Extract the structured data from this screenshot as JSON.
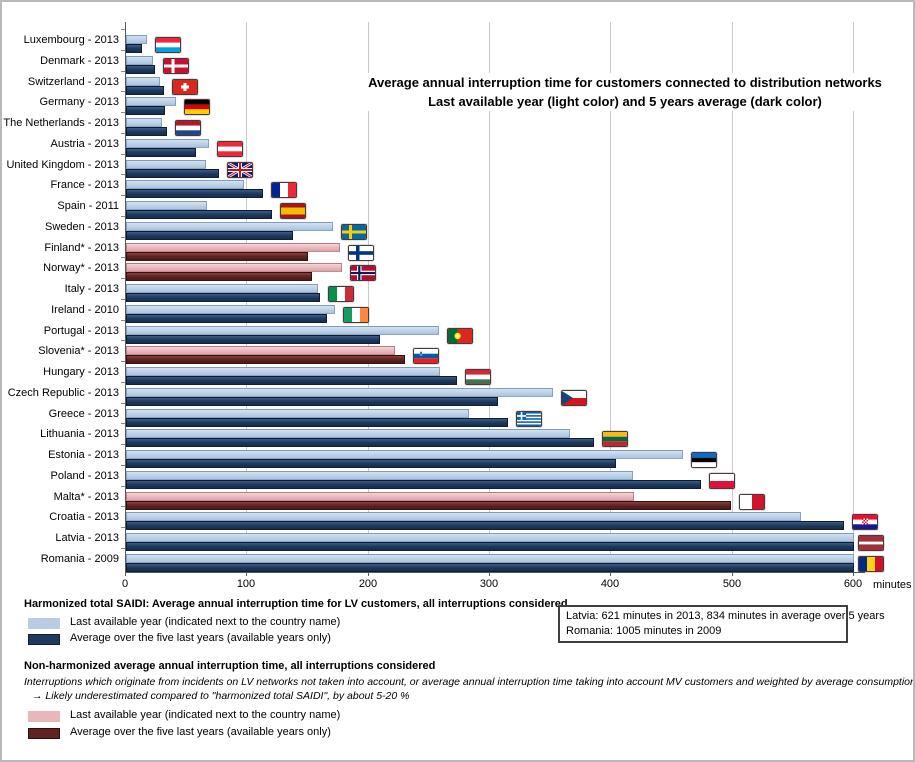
{
  "title": {
    "line1": "Average annual interruption time for customers connected to distribution networks",
    "line2": "Last available year (light color) and 5 years average (dark color)"
  },
  "axis": {
    "unit_label": "minutes"
  },
  "chart_data": {
    "type": "bar",
    "orientation": "horizontal",
    "unit": "minutes",
    "xlim": [
      0,
      600
    ],
    "x_ticks": [
      0,
      100,
      200,
      300,
      400,
      500,
      600
    ],
    "grid": true,
    "series_names": [
      "Last available year",
      "Average over the five last years"
    ],
    "countries": [
      {
        "label": "Luxembourg - 2013",
        "flag": "luxembourg",
        "group": "harmonized",
        "last_year": 17,
        "five_year_avg": 13
      },
      {
        "label": "Denmark - 2013",
        "flag": "denmark",
        "group": "harmonized",
        "last_year": 22,
        "five_year_avg": 24
      },
      {
        "label": "Switzerland - 2013",
        "flag": "switzerland",
        "group": "harmonized",
        "last_year": 28,
        "five_year_avg": 31
      },
      {
        "label": "Germany - 2013",
        "flag": "germany",
        "group": "harmonized",
        "last_year": 41,
        "five_year_avg": 32
      },
      {
        "label": "The Netherlands - 2013",
        "flag": "netherlands",
        "group": "harmonized",
        "last_year": 30,
        "five_year_avg": 34
      },
      {
        "label": "Austria - 2013",
        "flag": "austria",
        "group": "harmonized",
        "last_year": 68,
        "five_year_avg": 58
      },
      {
        "label": "United Kingdom - 2013",
        "flag": "uk",
        "group": "harmonized",
        "last_year": 66,
        "five_year_avg": 77
      },
      {
        "label": "France - 2013",
        "flag": "france",
        "group": "harmonized",
        "last_year": 97,
        "five_year_avg": 113
      },
      {
        "label": "Spain - 2011",
        "flag": "spain",
        "group": "harmonized",
        "last_year": 67,
        "five_year_avg": 120
      },
      {
        "label": "Sweden - 2013",
        "flag": "sweden",
        "group": "harmonized",
        "last_year": 171,
        "five_year_avg": 138
      },
      {
        "label": "Finland* - 2013",
        "flag": "finland",
        "group": "non_harmonized",
        "last_year": 176,
        "five_year_avg": 150
      },
      {
        "label": "Norway* - 2013",
        "flag": "norway",
        "group": "non_harmonized",
        "last_year": 178,
        "five_year_avg": 153
      },
      {
        "label": "Italy - 2013",
        "flag": "italy",
        "group": "harmonized",
        "last_year": 158,
        "five_year_avg": 160
      },
      {
        "label": "Ireland - 2010",
        "flag": "ireland",
        "group": "harmonized",
        "last_year": 172,
        "five_year_avg": 166
      },
      {
        "label": "Portugal - 2013",
        "flag": "portugal",
        "group": "harmonized",
        "last_year": 258,
        "five_year_avg": 209
      },
      {
        "label": "Slovenia* - 2013",
        "flag": "slovenia",
        "group": "non_harmonized",
        "last_year": 222,
        "five_year_avg": 230
      },
      {
        "label": "Hungary - 2013",
        "flag": "hungary",
        "group": "harmonized",
        "last_year": 259,
        "five_year_avg": 273
      },
      {
        "label": "Czech Republic - 2013",
        "flag": "czech",
        "group": "harmonized",
        "last_year": 352,
        "five_year_avg": 307
      },
      {
        "label": "Greece - 2013",
        "flag": "greece",
        "group": "harmonized",
        "last_year": 283,
        "five_year_avg": 315
      },
      {
        "label": "Lithuania - 2013",
        "flag": "lithuania",
        "group": "harmonized",
        "last_year": 366,
        "five_year_avg": 386
      },
      {
        "label": "Estonia - 2013",
        "flag": "estonia",
        "group": "harmonized",
        "last_year": 459,
        "five_year_avg": 404
      },
      {
        "label": "Poland - 2013",
        "flag": "poland",
        "group": "harmonized",
        "last_year": 418,
        "five_year_avg": 474
      },
      {
        "label": "Malta* - 2013",
        "flag": "malta",
        "group": "non_harmonized",
        "last_year": 419,
        "five_year_avg": 499
      },
      {
        "label": "Croatia - 2013",
        "flag": "croatia",
        "group": "harmonized",
        "last_year": 556,
        "five_year_avg": 592
      },
      {
        "label": "Latvia - 2013",
        "flag": "latvia",
        "group": "harmonized",
        "last_year": 621,
        "five_year_avg": 834,
        "clipped": true
      },
      {
        "label": "Romania - 2009",
        "flag": "romania",
        "group": "harmonized",
        "last_year": 1005,
        "five_year_avg": null,
        "clipped": true
      }
    ]
  },
  "legend_harmonized": {
    "header": "Harmonized total SAIDI: Average annual interruption time for LV customers, all interruptions considered",
    "items": [
      {
        "swatch": "light_blue",
        "label": "Last available year (indicated next to the country name)"
      },
      {
        "swatch": "dark_blue",
        "label": "Average over the five last years (available years only)"
      }
    ]
  },
  "note_box": {
    "line1": "Latvia: 621 minutes in 2013, 834 minutes in average over 5 years",
    "line2": "Romania: 1005 minutes in 2009"
  },
  "legend_non_harmonized": {
    "header": "Non-harmonized average annual interruption time, all interruptions considered",
    "desc1": "Interruptions which originate from incidents on LV networks not taken into account, or average annual interruption time taking into account MV customers and weighted by average consumption",
    "desc2": "→ Likely underestimated compared to \"harmonized total SAIDI\", by about 5-20 %",
    "items": [
      {
        "swatch": "pink",
        "label": "Last available year (indicated next to the country name)"
      },
      {
        "swatch": "dark_red",
        "label": "Average over the five last years (available years only)"
      }
    ]
  },
  "colors": {
    "light_blue": "#B8CCE4",
    "dark_blue": "#1F3A5F",
    "pink": "#E6B8BC",
    "dark_red": "#5F2322",
    "grid": "#C9C9C9",
    "axis": "#595959"
  }
}
